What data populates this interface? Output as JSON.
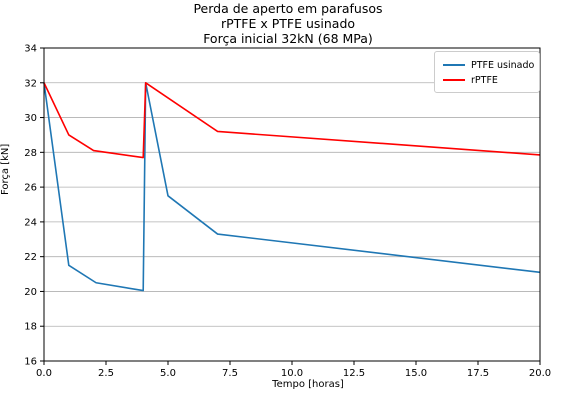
{
  "chart_data": {
    "type": "line",
    "title_lines": [
      "Perda de aperto em parafusos",
      "rPTFE x PTFE usinado",
      "Força inicial 32kN (68 MPa)"
    ],
    "xlabel": "Tempo [horas]",
    "ylabel": "Força [kN]",
    "xlim": [
      0,
      20
    ],
    "ylim": [
      16,
      34
    ],
    "xticks": [
      "0.0",
      "2.5",
      "5.0",
      "7.5",
      "10.0",
      "12.5",
      "15.0",
      "17.5",
      "20.0"
    ],
    "xtick_values": [
      0,
      2.5,
      5,
      7.5,
      10,
      12.5,
      15,
      17.5,
      20
    ],
    "yticks": [
      "16",
      "18",
      "20",
      "22",
      "24",
      "26",
      "28",
      "30",
      "32",
      "34"
    ],
    "ytick_values": [
      16,
      18,
      20,
      22,
      24,
      26,
      28,
      30,
      32,
      34
    ],
    "grid": "horizontal",
    "legend_placement": "top-right",
    "series": [
      {
        "name": "PTFE usinado",
        "color": "#1f77b4",
        "x": [
          0,
          1,
          2.1,
          4,
          4.1,
          5,
          7,
          20
        ],
        "y": [
          32,
          21.5,
          20.5,
          20.05,
          32,
          25.5,
          23.3,
          21.1
        ]
      },
      {
        "name": "rPTFE",
        "color": "#ff0000",
        "x": [
          0,
          1,
          2,
          4,
          4.1,
          7,
          20
        ],
        "y": [
          32,
          29,
          28.1,
          27.7,
          32,
          29.2,
          27.85
        ]
      }
    ]
  }
}
